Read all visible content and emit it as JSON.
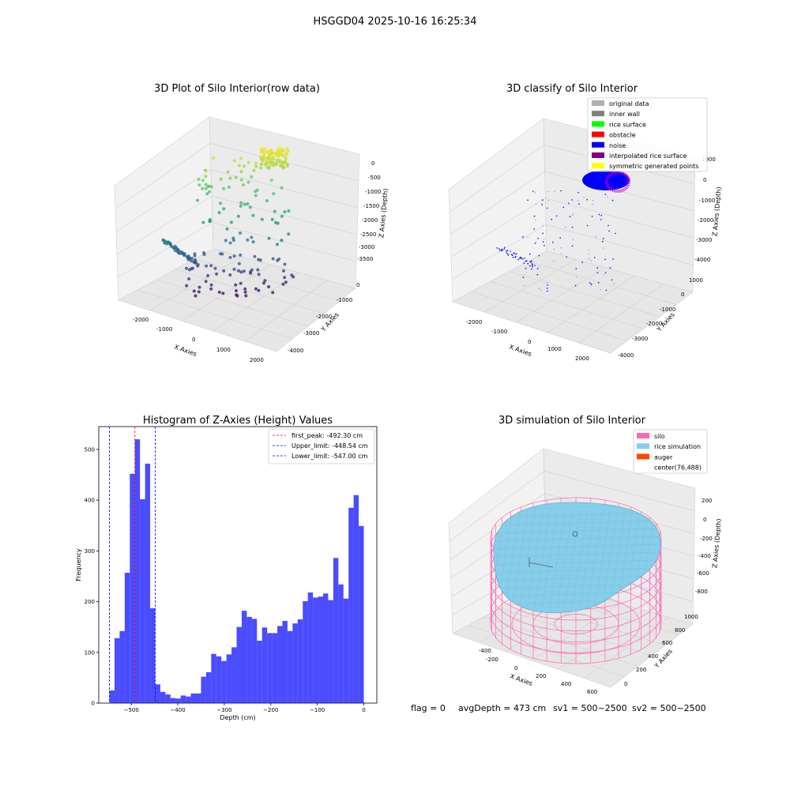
{
  "figure": {
    "suptitle": "HSGGD04 2025-10-16 16:25:34",
    "footer": {
      "flag": "flag = 0",
      "avg_depth": "avgDepth = 473 cm",
      "sv1": "sv1 = 500~2500",
      "sv2": "sv2 = 500~2500"
    }
  },
  "chart_data": [
    {
      "type": "scatter",
      "projection": "3d",
      "title": "3D Plot of Silo Interior(row data)",
      "xlabel": "X Axies",
      "ylabel": "Y Axies",
      "zlabel": "Z Axies (Depth)",
      "xticks": [
        "-2000",
        "-1000",
        "0",
        "1000",
        "2000"
      ],
      "yticks": [
        "0",
        "-1000",
        "-2000",
        "-3000",
        "-4000"
      ],
      "zticks": [
        "0",
        "-500",
        "-1000",
        "-1500",
        "-2000",
        "-2500",
        "-3000",
        "-3500"
      ],
      "colormap": "viridis",
      "grid": true
    },
    {
      "type": "scatter",
      "projection": "3d",
      "title": "3D classify of Silo Interior",
      "xlabel": "X Axies",
      "ylabel": "Y Axies",
      "zlabel": "Z Axies (Depth)",
      "xticks": [
        "-2000",
        "-1000",
        "0",
        "1000",
        "2000"
      ],
      "yticks": [
        "1000",
        "0",
        "-1000",
        "-2000",
        "-3000",
        "-4000"
      ],
      "zticks": [
        "1000",
        "0",
        "-1000",
        "-2000",
        "-3000",
        "-4000"
      ],
      "legend_position": "top-right",
      "legend": [
        {
          "label": "original data",
          "color": "#b0b0b0"
        },
        {
          "label": "inner wall",
          "color": "#808080"
        },
        {
          "label": "rice surface",
          "color": "#00ff00"
        },
        {
          "label": "obstacle",
          "color": "#ff0000"
        },
        {
          "label": "noise",
          "color": "#0000ff"
        },
        {
          "label": "interpolated rice surface",
          "color": "#800080"
        },
        {
          "label": "symmetric generated points",
          "color": "#ffff00"
        }
      ],
      "grid": true
    },
    {
      "type": "bar",
      "subtype": "histogram",
      "title": "Histogram of Z-Axies (Height) Values",
      "xlabel": "Depth (cm)",
      "ylabel": "Frequency",
      "xlim": [
        -570,
        28
      ],
      "ylim": [
        0,
        545
      ],
      "xticks": [
        -500,
        -400,
        -300,
        -200,
        -100,
        0
      ],
      "yticks": [
        0,
        100,
        200,
        300,
        400,
        500
      ],
      "bin_start": -547,
      "bin_width": 10.94,
      "values": [
        25,
        128,
        142,
        257,
        452,
        520,
        402,
        472,
        187,
        37,
        22,
        17,
        10,
        9,
        15,
        13,
        19,
        19,
        52,
        61,
        97,
        92,
        83,
        96,
        110,
        150,
        182,
        170,
        166,
        123,
        149,
        138,
        138,
        152,
        162,
        142,
        157,
        165,
        201,
        218,
        208,
        210,
        216,
        203,
        286,
        234,
        206,
        385,
        410,
        349
      ],
      "bar_color": "#0000ff",
      "reference_lines": [
        {
          "label": "first_peak: -492.30 cm",
          "x": -492.3,
          "color": "#ff0000"
        },
        {
          "label": "Upper_limit: -448.54 cm",
          "x": -448.54,
          "color": "#0000ff"
        },
        {
          "label": "Lower_limit: -547.00 cm",
          "x": -547.0,
          "color": "#0000ff"
        }
      ],
      "legend_position": "top-right"
    },
    {
      "type": "surface",
      "projection": "3d",
      "title": "3D simulation of Silo Interior",
      "xlabel": "X Axies",
      "ylabel": "Y Axies",
      "zlabel": "Z Axies (Depth)",
      "xticks": [
        "-400",
        "-200",
        "0",
        "200",
        "400",
        "600"
      ],
      "yticks": [
        "0",
        "200",
        "400",
        "600",
        "800",
        "1000"
      ],
      "zticks": [
        "200",
        "0",
        "-200",
        "-400",
        "-600",
        "-800"
      ],
      "legend_position": "top-right",
      "legend": [
        {
          "label": "silo",
          "color": "#ff69b4"
        },
        {
          "label": "rice simulation",
          "color": "#87ceeb"
        },
        {
          "label": "auger",
          "color": "#ff4500"
        },
        {
          "label": "center(76,488)",
          "color": "none"
        }
      ],
      "grid": true
    }
  ]
}
